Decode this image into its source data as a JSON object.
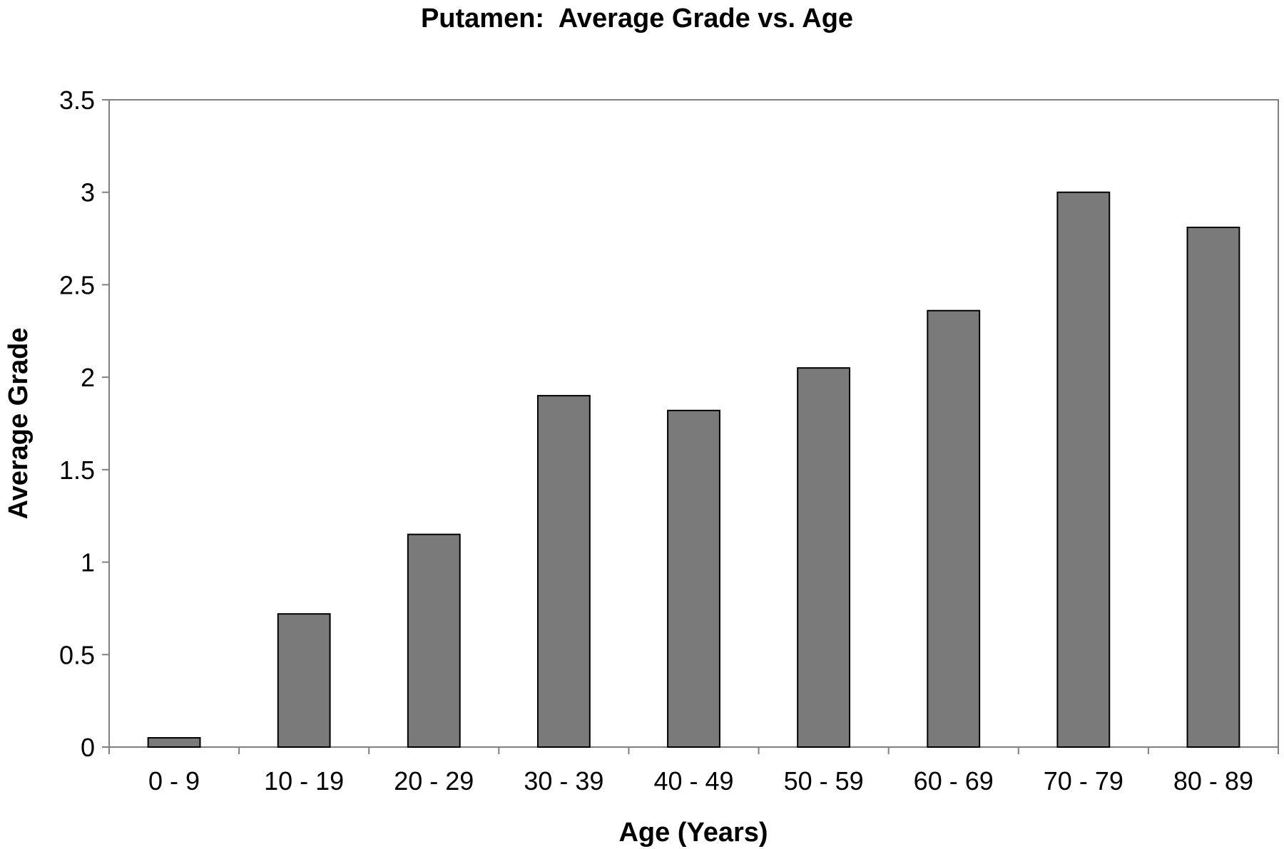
{
  "chart_data": {
    "type": "bar",
    "title": "Putamen:  Average Grade vs. Age",
    "xlabel": "Age (Years)",
    "ylabel": "Average Grade",
    "categories": [
      "0 - 9",
      "10 - 19",
      "20 - 29",
      "30 - 39",
      "40 - 49",
      "50 - 59",
      "60 - 69",
      "70 - 79",
      "80 - 89"
    ],
    "values": [
      0.05,
      0.72,
      1.15,
      1.9,
      1.82,
      2.05,
      2.36,
      3.0,
      2.81
    ],
    "ylim": [
      0,
      3.5
    ],
    "yticks": [
      "0",
      "0.5",
      "1",
      "1.5",
      "2",
      "2.5",
      "3",
      "3.5"
    ],
    "grid": false,
    "legend": "none",
    "bar_color": "#7a7a7a",
    "bar_border_color": "#000000",
    "frame_color": "#808080"
  }
}
